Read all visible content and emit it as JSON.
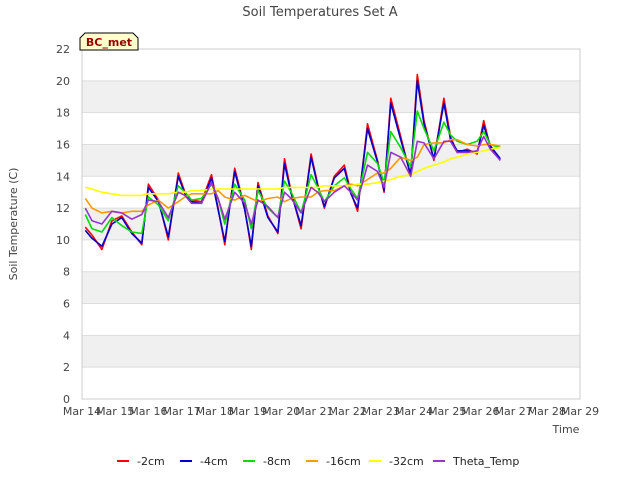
{
  "chart_data": {
    "type": "line",
    "title": "Soil Temperatures Set A",
    "xlabel": "Time",
    "ylabel": "Soil Temperature (C)",
    "badge": "BC_met",
    "xlim": [
      14,
      29
    ],
    "ylim": [
      0,
      22
    ],
    "x_ticks": [
      14,
      15,
      16,
      17,
      18,
      19,
      20,
      21,
      22,
      23,
      24,
      25,
      26,
      27,
      28,
      29
    ],
    "x_tick_labels": [
      "Mar 14",
      "Mar 15",
      "Mar 16",
      "Mar 17",
      "Mar 18",
      "Mar 19",
      "Mar 20",
      "Mar 21",
      "Mar 22",
      "Mar 23",
      "Mar 24",
      "Mar 25",
      "Mar 26",
      "Mar 27",
      "Mar 28",
      "Mar 29"
    ],
    "y_ticks": [
      0,
      2,
      4,
      6,
      8,
      10,
      12,
      14,
      16,
      18,
      20,
      22
    ],
    "grid": true,
    "legend_position": "bottom",
    "x": [
      14.1,
      14.3,
      14.6,
      14.9,
      15.2,
      15.5,
      15.8,
      16.0,
      16.3,
      16.6,
      16.9,
      17.1,
      17.3,
      17.6,
      17.9,
      18.1,
      18.3,
      18.6,
      18.9,
      19.1,
      19.3,
      19.6,
      19.9,
      20.1,
      20.3,
      20.6,
      20.9,
      21.1,
      21.3,
      21.6,
      21.9,
      22.1,
      22.3,
      22.6,
      22.9,
      23.1,
      23.3,
      23.6,
      23.9,
      24.1,
      24.3,
      24.6,
      24.9,
      25.1,
      25.3,
      25.6,
      25.9,
      26.1,
      26.3,
      26.6,
      26.9,
      27.1,
      27.3,
      27.6,
      27.9,
      28.1,
      28.2
    ],
    "series": [
      {
        "name": "-2cm",
        "color": "#ff0000",
        "values": [
          10.8,
          10.3,
          9.4,
          11.2,
          11.5,
          10.5,
          9.7,
          13.5,
          12.5,
          10.0,
          14.2,
          13.0,
          12.5,
          12.4,
          14.1,
          12.0,
          9.7,
          14.5,
          12.0,
          9.4,
          13.6,
          11.5,
          10.4,
          15.1,
          13.0,
          10.7,
          15.4,
          13.5,
          12.0,
          14.0,
          14.7,
          13.0,
          11.8,
          17.3,
          15.0,
          13.0,
          18.9,
          16.5,
          14.0,
          20.4,
          17.5,
          15.0,
          18.9,
          16.5,
          15.5,
          15.7,
          15.4,
          17.5,
          15.8,
          15.0,
          null,
          null,
          null,
          null,
          null,
          null,
          null
        ]
      },
      {
        "name": "-4cm",
        "color": "#0000cc",
        "values": [
          10.6,
          10.1,
          9.6,
          11.0,
          11.4,
          10.4,
          9.8,
          13.3,
          12.4,
          10.2,
          14.0,
          12.9,
          12.4,
          12.3,
          13.9,
          11.9,
          9.9,
          14.3,
          11.9,
          9.6,
          13.4,
          11.4,
          10.5,
          14.8,
          12.9,
          10.9,
          15.2,
          13.4,
          12.1,
          13.9,
          14.5,
          12.9,
          12.0,
          17.0,
          14.9,
          13.1,
          18.6,
          16.3,
          14.1,
          20.0,
          17.3,
          15.1,
          18.6,
          16.3,
          15.6,
          15.6,
          15.5,
          17.2,
          15.9,
          15.1,
          null,
          null,
          null,
          null,
          null,
          null,
          null
        ]
      },
      {
        "name": "-8cm",
        "color": "#00dd00",
        "values": [
          11.6,
          10.7,
          10.5,
          11.4,
          10.9,
          10.5,
          10.4,
          12.7,
          12.2,
          11.2,
          13.4,
          13.0,
          12.5,
          12.6,
          13.5,
          12.6,
          11.0,
          13.5,
          12.5,
          10.7,
          13.1,
          12.0,
          11.4,
          13.7,
          13.0,
          11.7,
          14.1,
          13.3,
          12.4,
          13.4,
          13.9,
          13.2,
          12.6,
          15.5,
          14.8,
          13.6,
          16.8,
          15.8,
          14.6,
          18.1,
          17.0,
          15.6,
          17.4,
          16.6,
          16.2,
          16.0,
          16.2,
          16.8,
          16.0,
          15.8,
          null,
          null,
          null,
          null,
          null,
          null,
          null
        ]
      },
      {
        "name": "-16cm",
        "color": "#ff9900",
        "values": [
          12.6,
          12.0,
          11.7,
          11.8,
          11.7,
          11.8,
          11.8,
          12.2,
          12.5,
          12.0,
          12.4,
          12.7,
          12.9,
          12.9,
          12.9,
          13.1,
          12.7,
          12.5,
          12.8,
          12.6,
          12.4,
          12.6,
          12.7,
          12.4,
          12.6,
          12.7,
          12.7,
          13.0,
          13.1,
          13.1,
          13.4,
          13.5,
          13.4,
          13.8,
          14.2,
          14.2,
          14.5,
          15.2,
          15.0,
          15.2,
          16.0,
          16.1,
          16.1,
          16.3,
          16.3,
          16.0,
          15.9,
          16.0,
          16.0,
          15.9,
          null,
          null,
          null,
          null,
          null,
          null,
          null
        ]
      },
      {
        "name": "-32cm",
        "color": "#ffff00",
        "values": [
          13.3,
          13.2,
          13.0,
          12.9,
          12.8,
          12.8,
          12.8,
          12.9,
          12.9,
          12.9,
          13.0,
          13.0,
          13.1,
          13.1,
          13.2,
          13.2,
          13.2,
          13.2,
          13.2,
          13.2,
          13.2,
          13.2,
          13.2,
          13.3,
          13.3,
          13.3,
          13.3,
          13.3,
          13.4,
          13.4,
          13.4,
          13.4,
          13.5,
          13.5,
          13.6,
          13.7,
          13.8,
          14.0,
          14.1,
          14.3,
          14.5,
          14.7,
          14.9,
          15.1,
          15.2,
          15.4,
          15.5,
          15.6,
          15.7,
          15.8,
          null,
          null,
          null,
          null,
          null,
          null,
          null
        ]
      },
      {
        "name": "Theta_Temp",
        "color": "#9933cc",
        "values": [
          12.0,
          11.2,
          11.0,
          11.8,
          11.7,
          11.3,
          11.6,
          12.5,
          12.4,
          11.4,
          13.0,
          12.8,
          12.3,
          12.3,
          13.6,
          12.6,
          11.3,
          13.0,
          12.3,
          11.0,
          12.5,
          12.1,
          11.4,
          13.0,
          12.6,
          11.7,
          13.3,
          13.0,
          12.4,
          13.0,
          13.4,
          13.0,
          12.5,
          14.7,
          14.3,
          13.3,
          15.5,
          15.2,
          14.0,
          16.2,
          16.1,
          15.1,
          16.2,
          16.2,
          15.5,
          15.5,
          15.6,
          16.5,
          15.7,
          15.0,
          null,
          null,
          null,
          null,
          null,
          null,
          null
        ]
      }
    ]
  }
}
